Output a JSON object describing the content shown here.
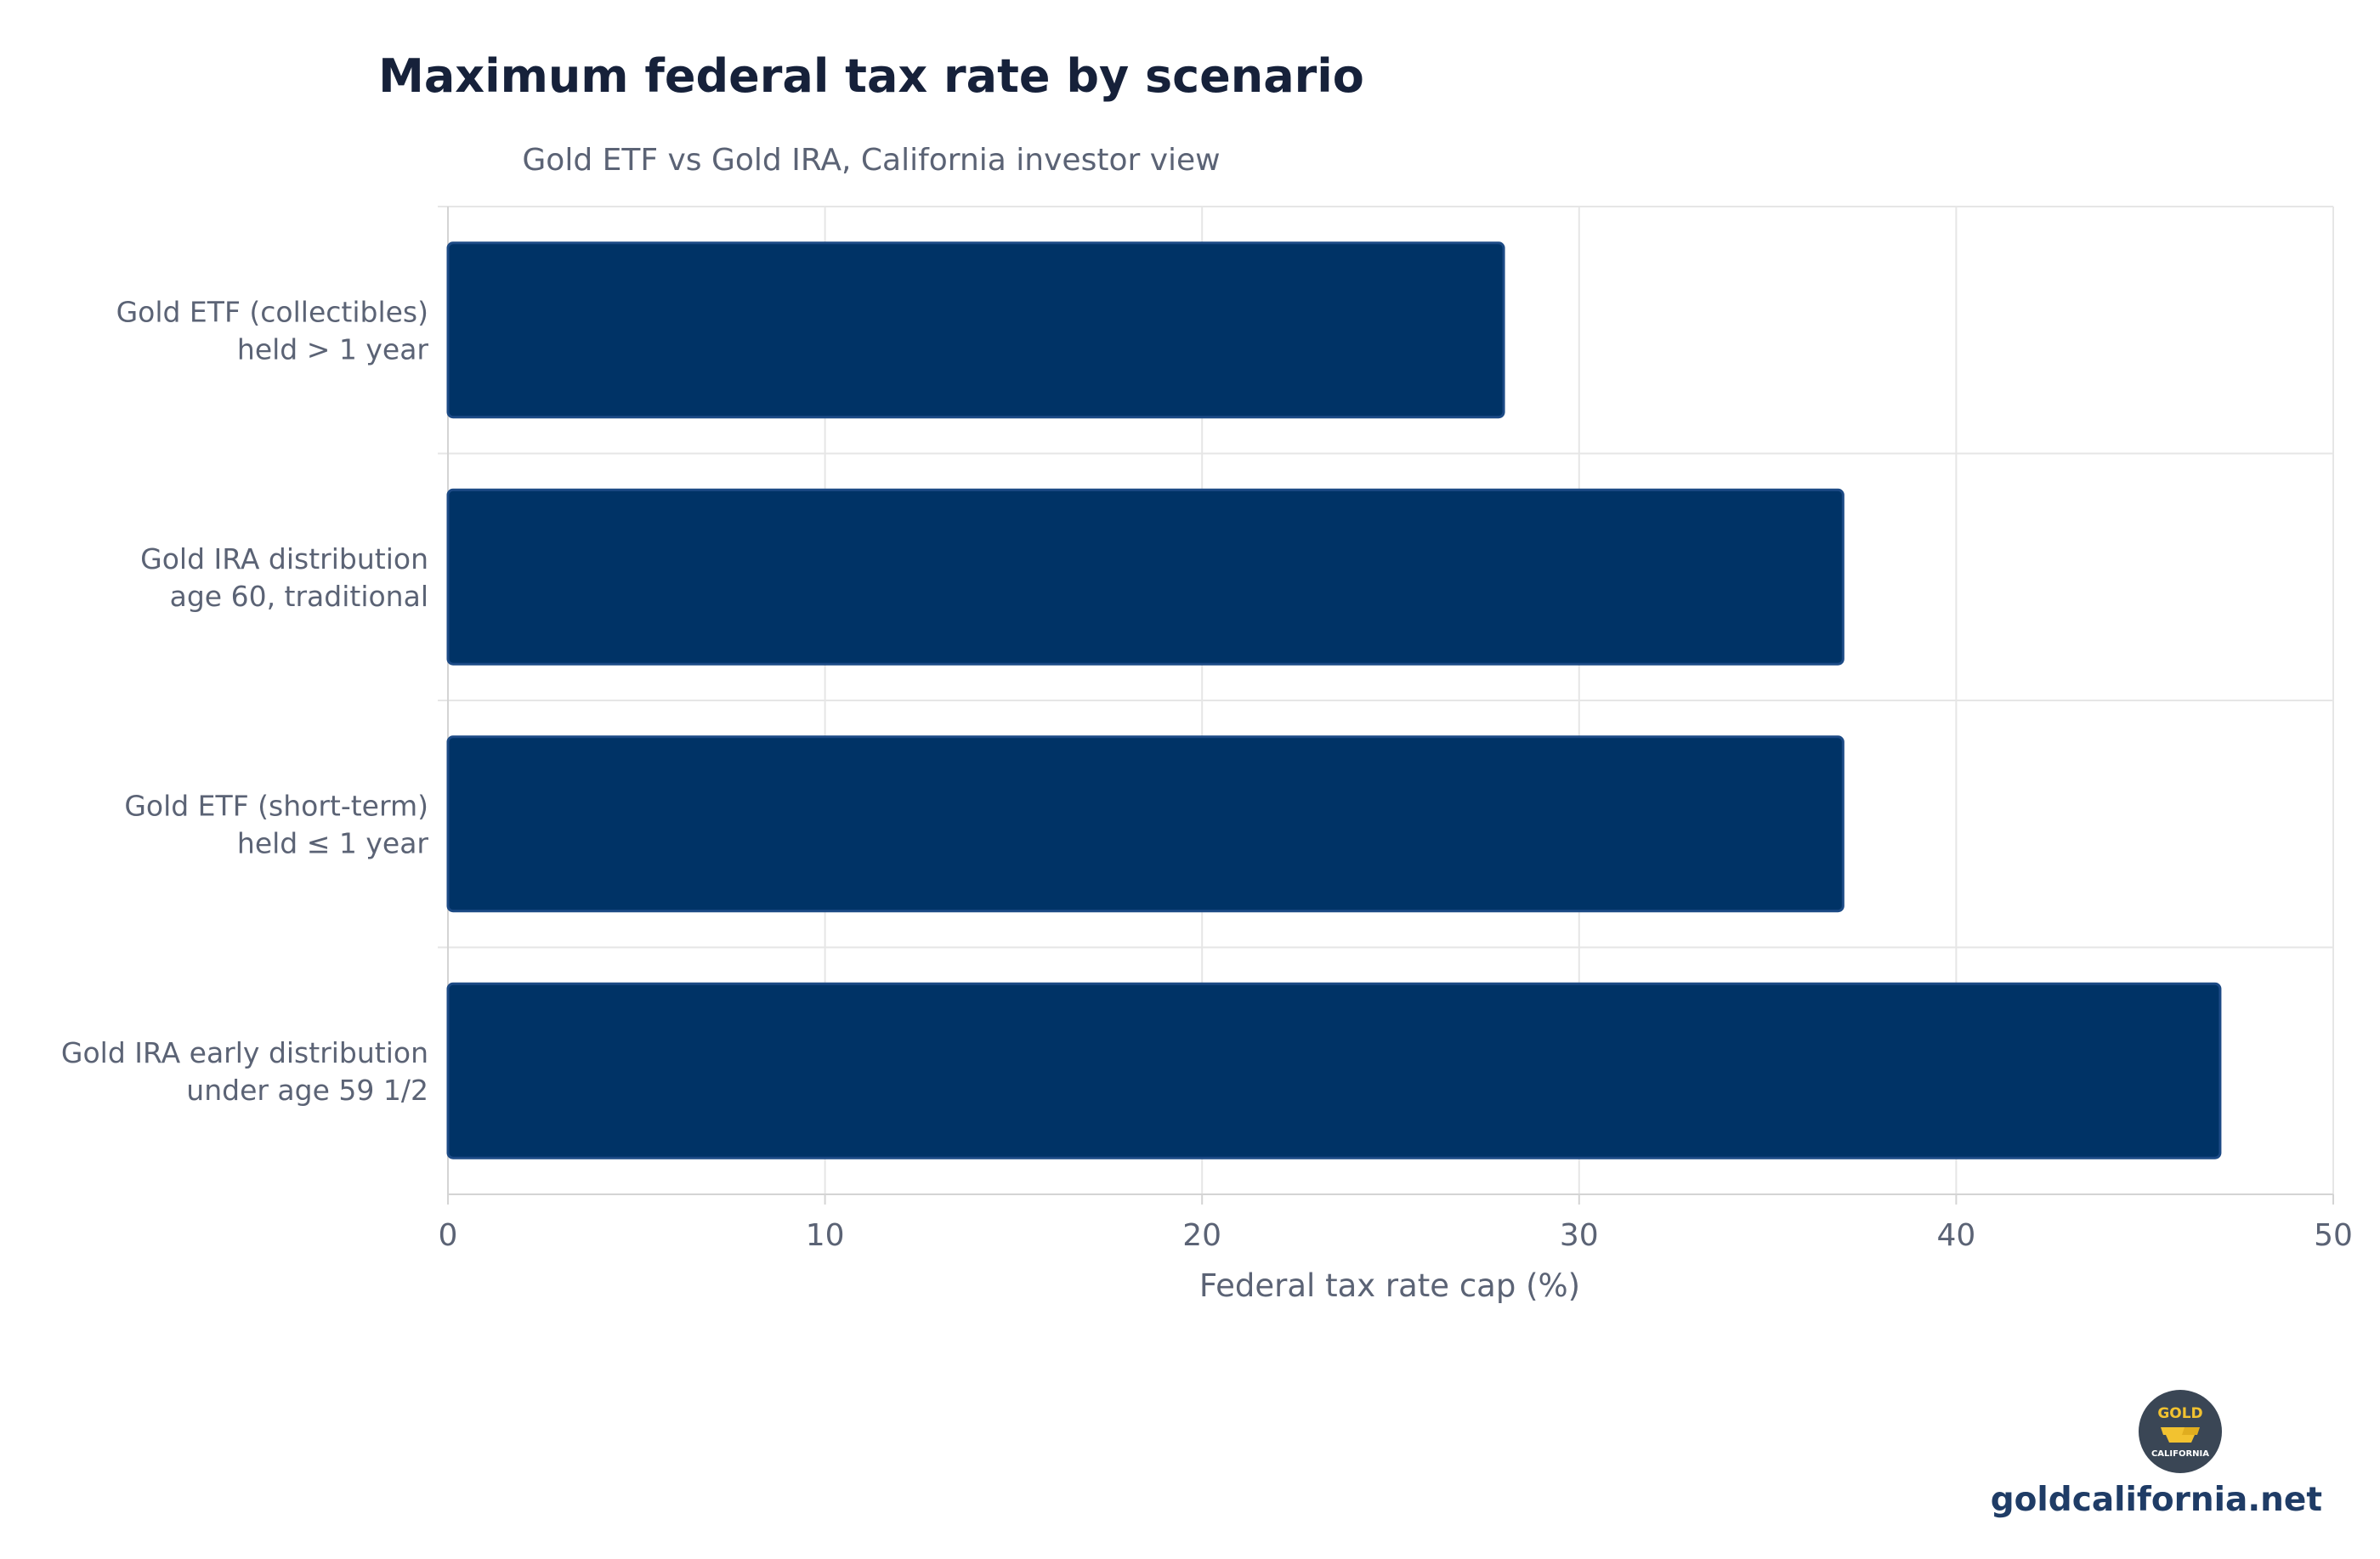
{
  "colors": {
    "bar": "#003366",
    "bar_border": "#1c4a85",
    "title": "#16213a",
    "muted_text": "#5b6375",
    "brand_link": "#1f3c66",
    "logo_circle": "#3a4655",
    "logo_gold": "#f2c230"
  },
  "chart_data": {
    "type": "bar",
    "orientation": "horizontal",
    "title": "Maximum federal tax rate by scenario",
    "subtitle": "Gold ETF vs Gold IRA, California investor view",
    "xlabel": "Federal tax rate cap (%)",
    "ylabel": "",
    "xlim": [
      0,
      50
    ],
    "xticks": [
      0,
      10,
      20,
      30,
      40,
      50
    ],
    "grid": true,
    "categories": [
      [
        "Gold ETF (collectibles)",
        "held > 1 year"
      ],
      [
        "Gold IRA distribution",
        "age 60, traditional"
      ],
      [
        "Gold ETF (short-term)",
        "held ≤ 1 year"
      ],
      [
        "Gold IRA early distribution",
        "under age 59 1/2"
      ]
    ],
    "values": [
      28,
      37,
      37,
      47
    ]
  },
  "branding": {
    "logo_icon": "gold-california-logo-icon",
    "logo_word_top": "GOLD",
    "logo_word_bottom": "CALIFORNIA",
    "site": "goldcalifornia.net"
  }
}
